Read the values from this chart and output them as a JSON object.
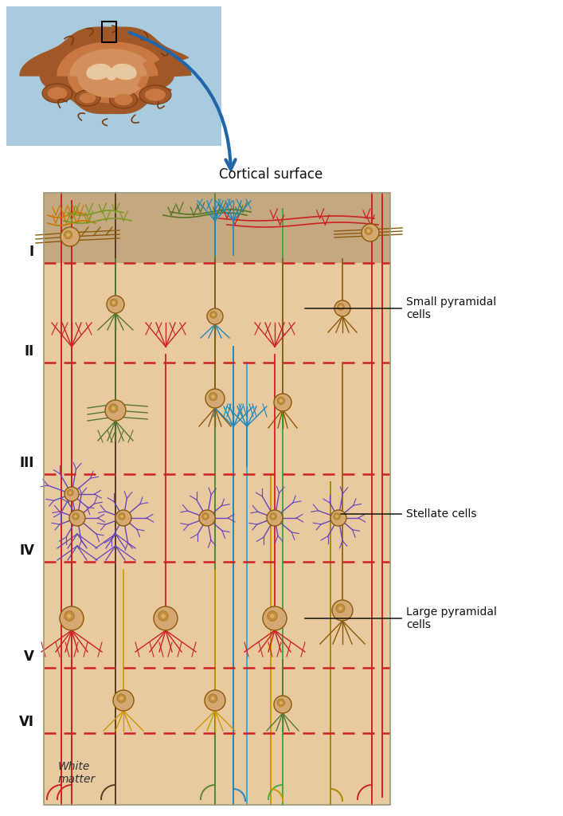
{
  "cortical_surface_label": "Cortical surface",
  "white_matter_label": "White\nmatter",
  "layer_labels": [
    "I",
    "II",
    "III",
    "IV",
    "V",
    "VI"
  ],
  "background_color": "#ffffff",
  "layer1_color": "#c4a882",
  "layer_main_color": "#e8c9a0",
  "dashed_line_color": "#cc2222",
  "brain_bg_color": "#a8ccdd",
  "annotation_texts": [
    "Small pyramidal\ncells",
    "Stellate cells",
    "Large pyramidal\ncells"
  ]
}
